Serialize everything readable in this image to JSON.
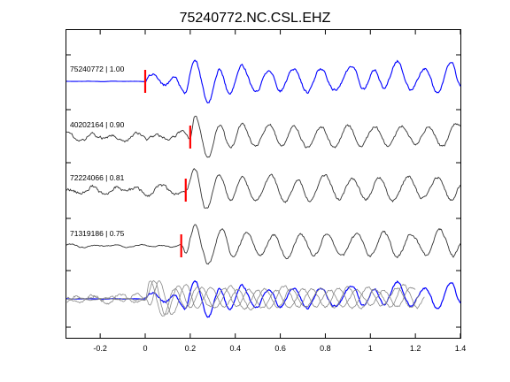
{
  "chart_data": {
    "type": "line",
    "title": "75240772.NC.CSL.EHZ",
    "xlabel": "",
    "ylabel": "",
    "xlim": [
      -0.35,
      1.4
    ],
    "xticks": [
      -0.2,
      0,
      0.2,
      0.4,
      0.6,
      0.8,
      1,
      1.2,
      1.4
    ],
    "xtick_labels": [
      "-0.2",
      "0",
      "0.2",
      "0.4",
      "0.6",
      "0.8",
      "1",
      "1.2",
      "1.4"
    ],
    "grid": false,
    "series": [
      {
        "label": "75240772 | 1.00",
        "pick": 0.0,
        "color": "#0000ff",
        "pre": 0.02,
        "post": 1.0,
        "peaks": [
          [
            0.03,
            0.35
          ],
          [
            0.085,
            -0.18
          ],
          [
            0.13,
            0.18
          ],
          [
            0.175,
            -0.55
          ],
          [
            0.22,
            1.0
          ],
          [
            0.28,
            -1.0
          ],
          [
            0.33,
            0.55
          ],
          [
            0.375,
            -0.6
          ],
          [
            0.43,
            0.75
          ],
          [
            0.49,
            -0.5
          ],
          [
            0.55,
            0.55
          ],
          [
            0.6,
            -0.45
          ],
          [
            0.66,
            0.6
          ],
          [
            0.72,
            -0.5
          ],
          [
            0.78,
            0.6
          ],
          [
            0.84,
            -0.4
          ],
          [
            0.92,
            0.7
          ],
          [
            0.97,
            -0.35
          ],
          [
            1.02,
            0.55
          ],
          [
            1.06,
            -0.35
          ],
          [
            1.12,
            0.95
          ],
          [
            1.18,
            -0.4
          ],
          [
            1.24,
            0.6
          ],
          [
            1.3,
            -0.5
          ],
          [
            1.36,
            0.9
          ],
          [
            1.4,
            -0.2
          ]
        ]
      },
      {
        "label": "40202164 | 0.90",
        "pick": 0.2,
        "color": "#333333",
        "pre": 0.4,
        "post": 1.0,
        "peaks": [
          [
            0.22,
            1.0
          ],
          [
            0.28,
            -1.0
          ],
          [
            0.33,
            0.55
          ],
          [
            0.38,
            -0.5
          ],
          [
            0.43,
            0.6
          ],
          [
            0.49,
            -0.45
          ],
          [
            0.55,
            0.6
          ],
          [
            0.61,
            -0.45
          ],
          [
            0.66,
            0.55
          ],
          [
            0.72,
            -0.5
          ],
          [
            0.78,
            0.5
          ],
          [
            0.84,
            -0.45
          ],
          [
            0.9,
            0.55
          ],
          [
            0.96,
            -0.4
          ],
          [
            1.02,
            0.5
          ],
          [
            1.08,
            -0.45
          ],
          [
            1.14,
            0.55
          ],
          [
            1.2,
            -0.35
          ],
          [
            1.26,
            0.45
          ],
          [
            1.32,
            -0.45
          ],
          [
            1.38,
            0.6
          ]
        ]
      },
      {
        "label": "72224066 | 0.81",
        "pick": 0.18,
        "color": "#333333",
        "pre": 0.45,
        "post": 1.0,
        "peaks": [
          [
            0.22,
            1.0
          ],
          [
            0.27,
            -0.9
          ],
          [
            0.33,
            0.75
          ],
          [
            0.38,
            -0.5
          ],
          [
            0.43,
            0.6
          ],
          [
            0.49,
            -0.5
          ],
          [
            0.56,
            0.7
          ],
          [
            0.62,
            -0.55
          ],
          [
            0.68,
            0.45
          ],
          [
            0.73,
            -0.5
          ],
          [
            0.8,
            0.7
          ],
          [
            0.86,
            -0.45
          ],
          [
            0.92,
            0.55
          ],
          [
            0.98,
            -0.45
          ],
          [
            1.04,
            0.6
          ],
          [
            1.1,
            -0.5
          ],
          [
            1.17,
            0.65
          ],
          [
            1.23,
            -0.4
          ],
          [
            1.3,
            0.6
          ],
          [
            1.36,
            -0.5
          ],
          [
            1.4,
            0.2
          ]
        ]
      },
      {
        "label": "71319186 | 0.75",
        "pick": 0.16,
        "color": "#333333",
        "pre": 0.12,
        "post": 1.0,
        "peaks": [
          [
            0.18,
            -0.35
          ],
          [
            0.22,
            0.95
          ],
          [
            0.28,
            -0.85
          ],
          [
            0.34,
            0.8
          ],
          [
            0.39,
            -0.5
          ],
          [
            0.45,
            0.6
          ],
          [
            0.51,
            -0.45
          ],
          [
            0.57,
            0.5
          ],
          [
            0.63,
            -0.55
          ],
          [
            0.69,
            0.55
          ],
          [
            0.75,
            -0.45
          ],
          [
            0.81,
            0.6
          ],
          [
            0.87,
            -0.5
          ],
          [
            0.94,
            0.55
          ],
          [
            1.0,
            -0.45
          ],
          [
            1.06,
            0.65
          ],
          [
            1.12,
            -0.5
          ],
          [
            1.18,
            0.55
          ],
          [
            1.25,
            -0.45
          ],
          [
            1.31,
            0.75
          ],
          [
            1.37,
            -0.5
          ],
          [
            1.4,
            0.1
          ]
        ]
      }
    ],
    "overlay": {
      "colors": [
        "#0000ff",
        "#888888",
        "#888888",
        "#888888"
      ],
      "amplitude_scale": 0.85
    },
    "colors": {
      "pick": "#ff0000",
      "axes": "#000000"
    }
  }
}
